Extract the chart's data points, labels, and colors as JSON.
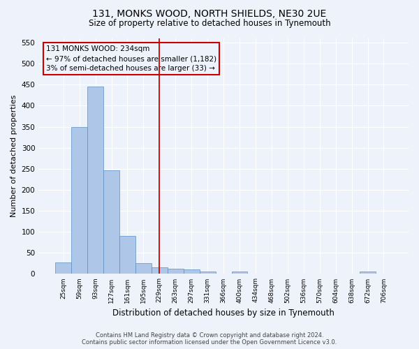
{
  "title": "131, MONKS WOOD, NORTH SHIELDS, NE30 2UE",
  "subtitle": "Size of property relative to detached houses in Tynemouth",
  "xlabel": "Distribution of detached houses by size in Tynemouth",
  "ylabel": "Number of detached properties",
  "footer_line1": "Contains HM Land Registry data © Crown copyright and database right 2024.",
  "footer_line2": "Contains public sector information licensed under the Open Government Licence v3.0.",
  "categories": [
    "25sqm",
    "59sqm",
    "93sqm",
    "127sqm",
    "161sqm",
    "195sqm",
    "229sqm",
    "263sqm",
    "297sqm",
    "331sqm",
    "366sqm",
    "400sqm",
    "434sqm",
    "468sqm",
    "502sqm",
    "536sqm",
    "570sqm",
    "604sqm",
    "638sqm",
    "672sqm",
    "706sqm"
  ],
  "values": [
    28,
    350,
    445,
    247,
    90,
    26,
    15,
    12,
    10,
    5,
    0,
    5,
    0,
    0,
    0,
    0,
    0,
    0,
    0,
    5,
    0
  ],
  "bar_color": "#aec6e8",
  "bar_edge_color": "#5a8fc2",
  "vline_x": 6,
  "vline_color": "#cc0000",
  "annotation_line1": "131 MONKS WOOD: 234sqm",
  "annotation_line2": "← 97% of detached houses are smaller (1,182)",
  "annotation_line3": "3% of semi-detached houses are larger (33) →",
  "annotation_box_color": "#cc0000",
  "ylim": [
    0,
    560
  ],
  "yticks": [
    0,
    50,
    100,
    150,
    200,
    250,
    300,
    350,
    400,
    450,
    500,
    550
  ],
  "bg_color": "#eef2fb",
  "grid_color": "#ffffff"
}
